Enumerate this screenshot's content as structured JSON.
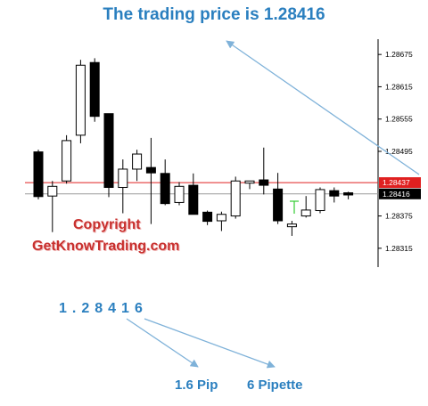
{
  "title": "The trading price is 1.28416",
  "watermark": {
    "line1": "Copyright",
    "line2": "GetKnowTrading.com"
  },
  "digits": "1.28416",
  "pip_label": "1.6 Pip",
  "pipette_label": "6 Pipette",
  "colors": {
    "accent": "#2a7fbf",
    "ask_line": "#e02020",
    "bid_line": "#9a9a9a",
    "bull_tick": "#33cc33"
  },
  "chart_data": {
    "type": "candlestick",
    "y_ticks": [
      "1.28675",
      "1.28615",
      "1.28555",
      "1.28495",
      "1.28375",
      "1.28315"
    ],
    "ylim": [
      1.2828,
      1.2871
    ],
    "ask_price": {
      "value": 1.28437,
      "label": "1.28437"
    },
    "bid_price": {
      "value": 1.28416,
      "label": "1.28416"
    },
    "candles": [
      {
        "open": 1.28494,
        "high": 1.28498,
        "low": 1.28406,
        "close": 1.28411
      },
      {
        "open": 1.28412,
        "high": 1.2844,
        "low": 1.28345,
        "close": 1.2843
      },
      {
        "open": 1.2844,
        "high": 1.28525,
        "low": 1.28435,
        "close": 1.28515
      },
      {
        "open": 1.28525,
        "high": 1.28665,
        "low": 1.2851,
        "close": 1.28655
      },
      {
        "open": 1.2866,
        "high": 1.28668,
        "low": 1.2855,
        "close": 1.2856
      },
      {
        "open": 1.28565,
        "high": 1.28565,
        "low": 1.2841,
        "close": 1.28428
      },
      {
        "open": 1.28428,
        "high": 1.2848,
        "low": 1.2838,
        "close": 1.28462
      },
      {
        "open": 1.28462,
        "high": 1.28498,
        "low": 1.2844,
        "close": 1.2849
      },
      {
        "open": 1.28465,
        "high": 1.2852,
        "low": 1.2836,
        "close": 1.28455
      },
      {
        "open": 1.28454,
        "high": 1.2848,
        "low": 1.28395,
        "close": 1.28398
      },
      {
        "open": 1.284,
        "high": 1.28438,
        "low": 1.28395,
        "close": 1.2843
      },
      {
        "open": 1.28432,
        "high": 1.28454,
        "low": 1.28378,
        "close": 1.28378
      },
      {
        "open": 1.28382,
        "high": 1.28385,
        "low": 1.28358,
        "close": 1.28365
      },
      {
        "open": 1.28366,
        "high": 1.28383,
        "low": 1.28347,
        "close": 1.28378
      },
      {
        "open": 1.28375,
        "high": 1.28448,
        "low": 1.2837,
        "close": 1.2844
      },
      {
        "open": 1.28436,
        "high": 1.2844,
        "low": 1.28425,
        "close": 1.2844
      },
      {
        "open": 1.28442,
        "high": 1.28502,
        "low": 1.28415,
        "close": 1.28432
      },
      {
        "open": 1.28425,
        "high": 1.28455,
        "low": 1.2836,
        "close": 1.28366
      },
      {
        "open": 1.28355,
        "high": 1.28366,
        "low": 1.28338,
        "close": 1.2836
      },
      {
        "open": 1.28375,
        "high": 1.28412,
        "low": 1.28372,
        "close": 1.28386
      },
      {
        "open": 1.28385,
        "high": 1.28428,
        "low": 1.2838,
        "close": 1.28424
      },
      {
        "open": 1.28422,
        "high": 1.28428,
        "low": 1.284,
        "close": 1.28412
      },
      {
        "open": 1.28418,
        "high": 1.2842,
        "low": 1.28406,
        "close": 1.28414
      }
    ]
  }
}
